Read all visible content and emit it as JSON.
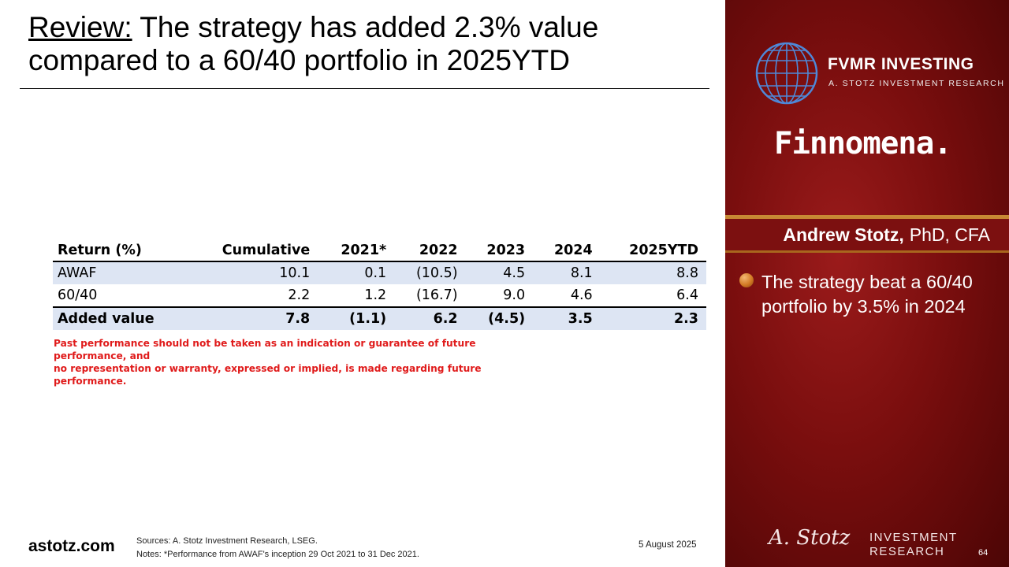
{
  "title": {
    "keyword": "Review:",
    "text": " The strategy has added 2.3% value compared to a 60/40 portfolio in 2025YTD"
  },
  "table": {
    "headers": [
      "Return (%)",
      "Cumulative",
      "2021*",
      "2022",
      "2023",
      "2024",
      "2025YTD"
    ],
    "rows": [
      [
        "AWAF",
        "10.1",
        "0.1",
        "(10.5)",
        "4.5",
        "8.1",
        "8.8"
      ],
      [
        "60/40",
        "2.2",
        "1.2",
        "(16.7)",
        "9.0",
        "4.6",
        "6.4"
      ],
      [
        "Added value",
        "7.8",
        "(1.1)",
        "6.2",
        "(4.5)",
        "3.5",
        "2.3"
      ]
    ]
  },
  "disclaimer": {
    "line1": "Past performance should not be taken as an indication or guarantee of future performance, and",
    "line2": "no representation or warranty, expressed or implied, is made regarding future performance."
  },
  "footer": {
    "site": "astotz.com",
    "sources": "Sources: A. Stotz Investment Research, LSEG.",
    "notes": "Notes: *Performance from AWAF's inception 29 Oct 2021 to 31 Dec 2021.",
    "date": "5 August 2025"
  },
  "panel": {
    "brand": "FVMR INVESTING",
    "brand_sub": "A. STOTZ INVESTMENT RESEARCH",
    "partner": "Finnomena.",
    "presenter_name": "Andrew Stotz,",
    "presenter_credentials": "PhD, CFA",
    "bullets": [
      "The strategy beat a 60/40 portfolio by 3.5% in 2024"
    ],
    "signature": "A. Stotz",
    "research_line1": "INVESTMENT",
    "research_line2": "RESEARCH",
    "slide_number": "64"
  },
  "colors": {
    "panel_red": "#7a0e0e",
    "gold_accent": "#c98a35",
    "table_stripe": "#dde5f3",
    "disclaimer_red": "#e01b1b"
  },
  "icons": [
    "globe-icon",
    "bullet-icon"
  ]
}
